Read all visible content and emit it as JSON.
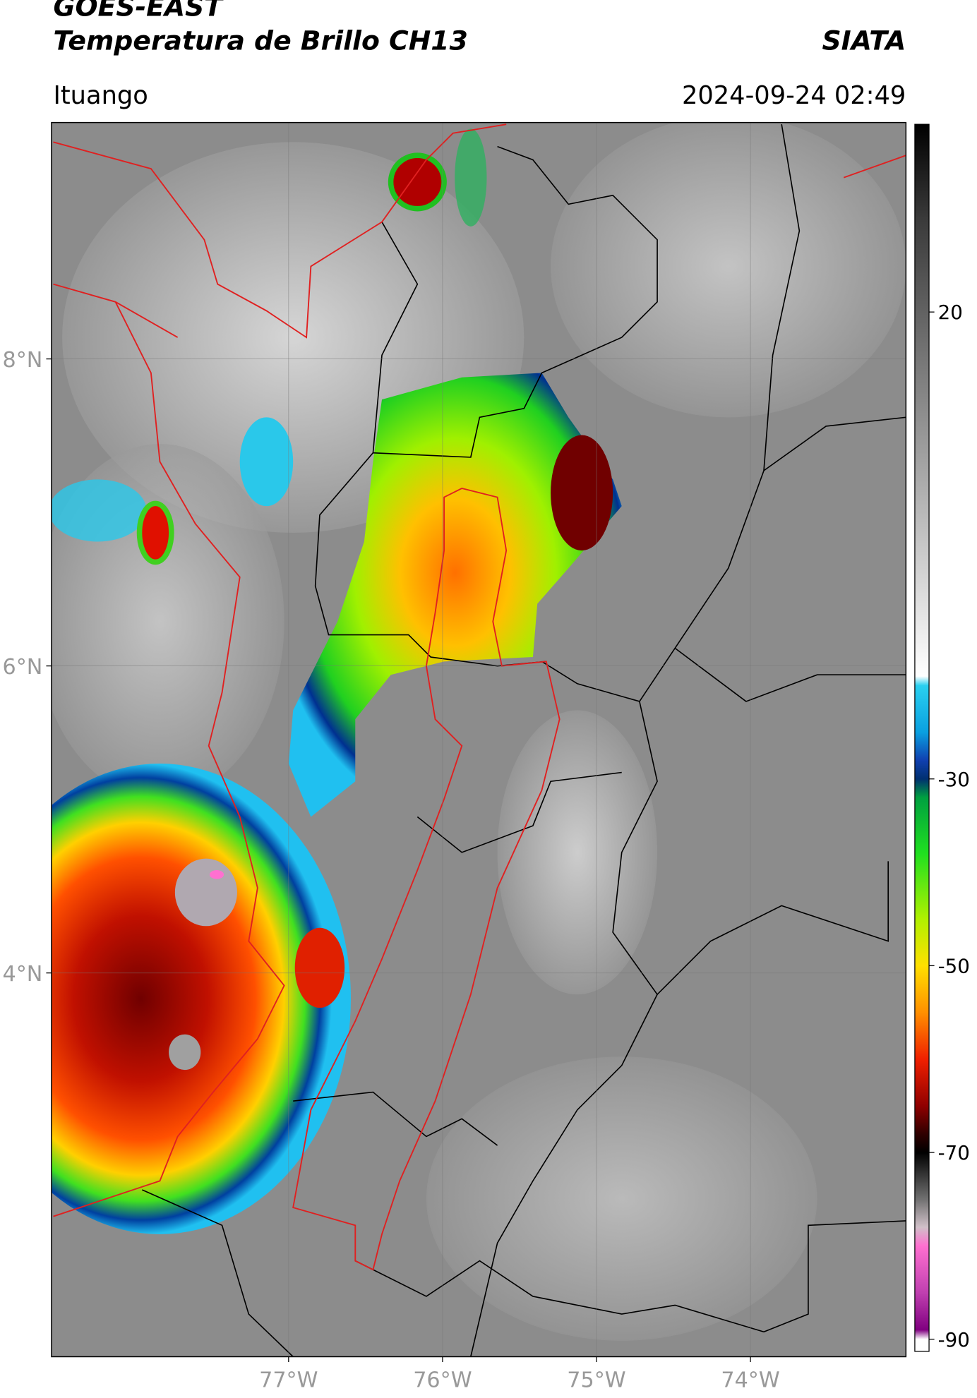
{
  "header": {
    "title": "GOES-EAST",
    "subtitle": "Temperatura de Brillo CH13",
    "source": "SIATA",
    "location": "Ituango",
    "datetime": "2024-09-24 02:49"
  },
  "map": {
    "lonlim": [
      -78.54,
      -72.99
    ],
    "latlim": [
      1.5,
      9.54
    ],
    "lonticks": [
      {
        "value": -77,
        "label": "77°W"
      },
      {
        "value": -76,
        "label": "76°W"
      },
      {
        "value": -75,
        "label": "75°W"
      },
      {
        "value": -74,
        "label": "74°W"
      }
    ],
    "latticks": [
      {
        "value": 8,
        "label": "8°N"
      },
      {
        "value": 6,
        "label": "6°N"
      },
      {
        "value": 4,
        "label": "4°N"
      }
    ],
    "grid": true
  },
  "colorbar": {
    "lim": [
      -91.3,
      40.1
    ],
    "ticks": [
      20,
      -30,
      -50,
      -70,
      -90
    ],
    "stops": [
      {
        "value": 40.1,
        "color": "#000000"
      },
      {
        "value": 30,
        "color": "#3a3a3a"
      },
      {
        "value": 10,
        "color": "#8a8a8a"
      },
      {
        "value": -19,
        "color": "#ffffff"
      },
      {
        "value": -20,
        "color": "#2ad0f0"
      },
      {
        "value": -25,
        "color": "#0aa0e0"
      },
      {
        "value": -28,
        "color": "#1040b0"
      },
      {
        "value": -30,
        "color": "#003070"
      },
      {
        "value": -32,
        "color": "#00a040"
      },
      {
        "value": -38,
        "color": "#20e020"
      },
      {
        "value": -45,
        "color": "#b0f000"
      },
      {
        "value": -50,
        "color": "#ffe000"
      },
      {
        "value": -55,
        "color": "#ff9000"
      },
      {
        "value": -60,
        "color": "#f02000"
      },
      {
        "value": -65,
        "color": "#900000"
      },
      {
        "value": -68,
        "color": "#300000"
      },
      {
        "value": -70,
        "color": "#000000"
      },
      {
        "value": -75,
        "color": "#707070"
      },
      {
        "value": -78,
        "color": "#d0c0c8"
      },
      {
        "value": -80,
        "color": "#ff70d0"
      },
      {
        "value": -85,
        "color": "#c040b0"
      },
      {
        "value": -89,
        "color": "#800080"
      },
      {
        "value": -90,
        "color": "#ffffff"
      },
      {
        "value": -91.3,
        "color": "#ffffff"
      }
    ]
  }
}
